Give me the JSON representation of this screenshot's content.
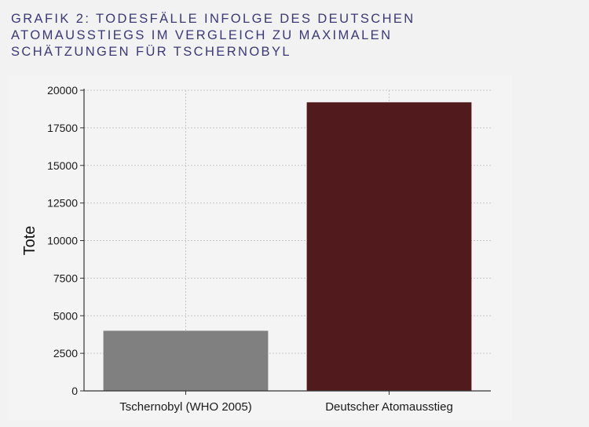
{
  "header": {
    "title_lines": [
      "GRAFIK 2: TODESFÄLLE INFOLGE DES DEUTSCHEN",
      "ATOMAUSSTIEGS IM VERGLEICH ZU MAXIMALEN",
      "SCHÄTZUNGEN FÜR TSCHERNOBYL"
    ]
  },
  "chart_data": {
    "type": "bar",
    "categories": [
      "Tschernobyl (WHO 2005)",
      "Deutscher Atomausstieg"
    ],
    "values": [
      4000,
      19200
    ],
    "bar_colors": [
      "#808080",
      "#511a1c"
    ],
    "ylabel": "Tote",
    "xlabel": "",
    "ylim": [
      0,
      20000
    ],
    "yticks": [
      0,
      2500,
      5000,
      7500,
      10000,
      12500,
      15000,
      17500,
      20000
    ],
    "grid": true
  }
}
